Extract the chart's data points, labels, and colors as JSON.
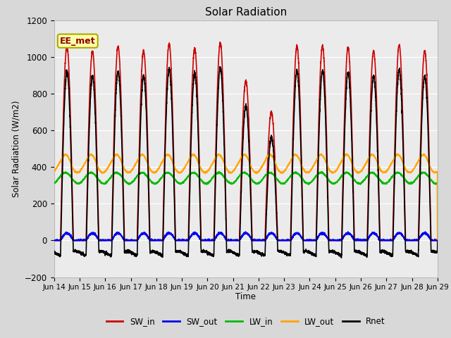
{
  "title": "Solar Radiation",
  "ylabel": "Solar Radiation (W/m2)",
  "xlabel": "Time",
  "ylim": [
    -200,
    1200
  ],
  "xlim": [
    0,
    15
  ],
  "x_tick_labels": [
    "Jun 14",
    "Jun 15",
    "Jun 16",
    "Jun 17",
    "Jun 18",
    "Jun 19",
    "Jun 20",
    "Jun 21",
    "Jun 22",
    "Jun 23",
    "Jun 24",
    "Jun 25",
    "Jun 26",
    "Jun 27",
    "Jun 28",
    "Jun 29"
  ],
  "annotation_text": "EE_met",
  "annotation_color": "#8B0000",
  "annotation_bg": "#FFFFAA",
  "annotation_border": "#AAAA00",
  "series": {
    "SW_in": {
      "color": "#CC0000",
      "lw": 1.2
    },
    "SW_out": {
      "color": "#0000EE",
      "lw": 1.2
    },
    "LW_in": {
      "color": "#00BB00",
      "lw": 1.2
    },
    "LW_out": {
      "color": "#FFA500",
      "lw": 1.2
    },
    "Rnet": {
      "color": "#000000",
      "lw": 1.2
    }
  },
  "bg_color": "#D8D8D8",
  "plot_bg": "#EBEBEB",
  "grid_color": "#FFFFFF",
  "n_days": 15,
  "pts_per_day": 288
}
